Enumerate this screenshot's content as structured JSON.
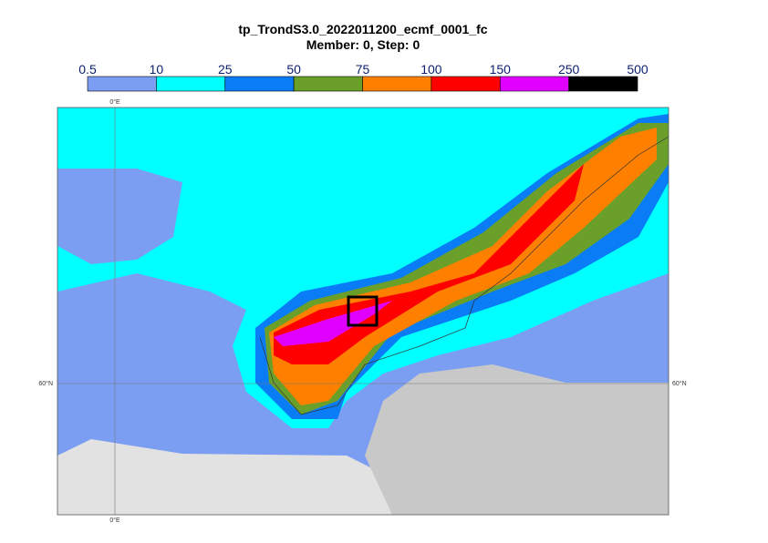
{
  "title": "tp_TrondS3.0_2022011200_ecmf_0001_fc",
  "subtitle": "Member: 0, Step: 0",
  "legend": {
    "bounds": [
      0.5,
      10,
      25,
      50,
      75,
      100,
      150,
      250,
      500
    ],
    "colors": [
      "#7b9ef2",
      "#00ffff",
      "#0a7cf5",
      "#6aa02a",
      "#ff8000",
      "#ff0000",
      "#e000ff",
      "#000000"
    ]
  },
  "map": {
    "labels": {
      "lon_top": "0°E",
      "lon_bottom": "0°E",
      "lat_left": "60°N",
      "lat_right": "60°N"
    }
  }
}
